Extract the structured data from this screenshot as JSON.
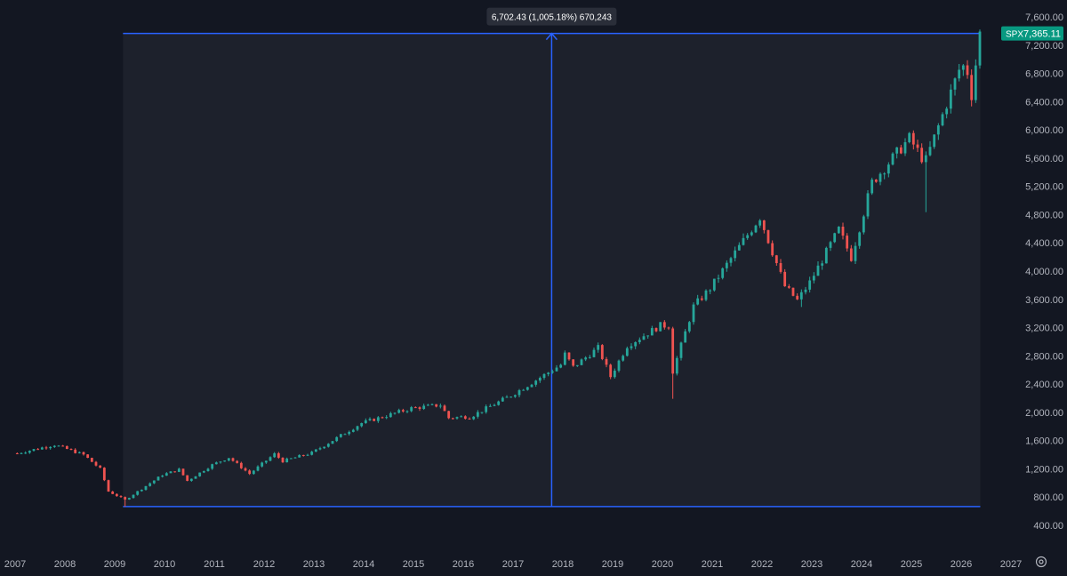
{
  "chart_data": {
    "type": "candlestick",
    "symbol": "SPX",
    "last_price": "7,365.11",
    "measure_label": "6,702.43 (1,005.18%) 670,243",
    "measure_range": {
      "start": "2009-03",
      "end": "2026-05",
      "low": 666,
      "high": 7366
    },
    "x_ticks": [
      "2007",
      "2008",
      "2009",
      "2010",
      "2011",
      "2012",
      "2013",
      "2014",
      "2015",
      "2016",
      "2017",
      "2018",
      "2019",
      "2020",
      "2021",
      "2022",
      "2023",
      "2024",
      "2025",
      "2026",
      "2027"
    ],
    "y_ticks": [
      "7,600.00",
      "7,200.00",
      "6,800.00",
      "6,400.00",
      "6,000.00",
      "5,600.00",
      "5,200.00",
      "4,800.00",
      "4,400.00",
      "4,000.00",
      "3,600.00",
      "3,200.00",
      "2,800.00",
      "2,400.00",
      "2,000.00",
      "1,600.00",
      "1,200.00",
      "800.00",
      "400.00"
    ],
    "y_range": [
      400,
      7600
    ],
    "x_range": [
      "2007-01",
      "2027-01"
    ],
    "grid": false,
    "colors": {
      "background": "#131722",
      "up": "#26a69a",
      "down": "#ef5350",
      "measure": "#2962ff",
      "measure_fill": "#1e222d",
      "axis_text": "#b2b5be",
      "tooltip_bg": "#2a2e39",
      "price_badge": "#089981"
    },
    "anchors": [
      [
        "2007-01",
        1420
      ],
      [
        "2007-10",
        1540
      ],
      [
        "2008-05",
        1400
      ],
      [
        "2008-09",
        1200
      ],
      [
        "2008-11",
        880
      ],
      [
        "2009-03",
        760
      ],
      [
        "2009-12",
        1115
      ],
      [
        "2010-04",
        1190
      ],
      [
        "2010-06",
        1030
      ],
      [
        "2010-12",
        1257
      ],
      [
        "2011-04",
        1360
      ],
      [
        "2011-09",
        1130
      ],
      [
        "2012-03",
        1410
      ],
      [
        "2012-05",
        1310
      ],
      [
        "2012-12",
        1426
      ],
      [
        "2013-12",
        1848
      ],
      [
        "2014-12",
        2058
      ],
      [
        "2015-07",
        2104
      ],
      [
        "2015-09",
        1920
      ],
      [
        "2016-01",
        1940
      ],
      [
        "2016-02",
        1932
      ],
      [
        "2016-12",
        2238
      ],
      [
        "2017-12",
        2673
      ],
      [
        "2018-01",
        2823
      ],
      [
        "2018-03",
        2640
      ],
      [
        "2018-09",
        2913
      ],
      [
        "2018-12",
        2506
      ],
      [
        "2019-04",
        2945
      ],
      [
        "2019-12",
        3230
      ],
      [
        "2020-02",
        3225
      ],
      [
        "2020-03",
        2580
      ],
      [
        "2020-08",
        3500
      ],
      [
        "2020-12",
        3756
      ],
      [
        "2021-12",
        4766
      ],
      [
        "2022-06",
        3785
      ],
      [
        "2022-09",
        3585
      ],
      [
        "2022-12",
        3839
      ],
      [
        "2023-07",
        4588
      ],
      [
        "2023-10",
        4193
      ],
      [
        "2024-03",
        5254
      ],
      [
        "2024-12",
        5881
      ],
      [
        "2025-03",
        5611
      ],
      [
        "2025-04",
        5569
      ],
      [
        "2025-12",
        6850
      ],
      [
        "2026-01",
        6900
      ],
      [
        "2026-02",
        6820
      ],
      [
        "2026-03",
        6500
      ],
      [
        "2026-05",
        7365
      ]
    ],
    "wicks": {
      "2020-03": 2192,
      "2025-04": 4835,
      "2009-03": 666,
      "2022-10": 3492
    }
  }
}
